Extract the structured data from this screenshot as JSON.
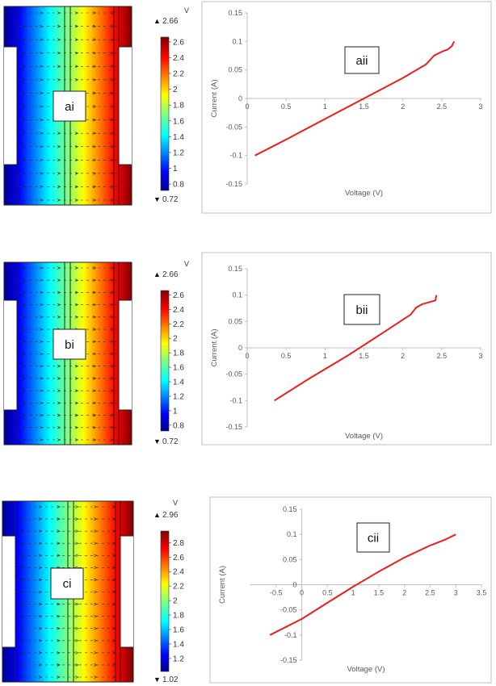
{
  "rows": [
    {
      "label": "ai",
      "unit": "V",
      "max_label": "2.66",
      "min_label": "0.72",
      "colorbar_ticks": [
        "2.6",
        "2.4",
        "2.2",
        "2",
        "1.8",
        "1.6",
        "1.4",
        "1.2",
        "1",
        "0.8"
      ],
      "colorbar_values": [
        2.6,
        2.4,
        2.2,
        2.0,
        1.8,
        1.6,
        1.4,
        1.2,
        1.0,
        0.8
      ],
      "range": [
        0.72,
        2.66
      ]
    },
    {
      "label": "bi",
      "unit": "V",
      "max_label": "2.66",
      "min_label": "0.72",
      "colorbar_ticks": [
        "2.6",
        "2.4",
        "2.2",
        "2",
        "1.8",
        "1.6",
        "1.4",
        "1.2",
        "1",
        "0.8"
      ],
      "colorbar_values": [
        2.6,
        2.4,
        2.2,
        2.0,
        1.8,
        1.6,
        1.4,
        1.2,
        1.0,
        0.8
      ],
      "range": [
        0.72,
        2.66
      ]
    },
    {
      "label": "ci",
      "unit": "V",
      "max_label": "2.96",
      "min_label": "1.02",
      "colorbar_ticks": [
        "2.8",
        "2.6",
        "2.4",
        "2.2",
        "2",
        "1.8",
        "1.6",
        "1.4",
        "1.2"
      ],
      "colorbar_values": [
        2.8,
        2.6,
        2.4,
        2.2,
        2.0,
        1.8,
        1.6,
        1.4,
        1.2
      ],
      "range": [
        1.02,
        2.96
      ]
    }
  ],
  "chart_data": [
    {
      "type": "line",
      "label": "aii",
      "xlabel": "Voltage (V)",
      "ylabel": "Current (A)",
      "xlim": [
        0,
        3
      ],
      "ylim": [
        -0.15,
        0.15
      ],
      "xticks": [
        "0",
        "0.5",
        "1",
        "1.5",
        "2",
        "2.5",
        "3"
      ],
      "xtick_values": [
        0,
        0.5,
        1,
        1.5,
        2,
        2.5,
        3
      ],
      "yticks": [
        "0.15",
        "0.1",
        "0.05",
        "0",
        "-0.05",
        "-0.1",
        "-0.15"
      ],
      "ytick_values": [
        0.15,
        0.1,
        0.05,
        0,
        -0.05,
        -0.1,
        -0.15
      ],
      "grid": false,
      "color": "#e8201c",
      "x": [
        0.1,
        0.5,
        1.0,
        1.5,
        2.0,
        2.3,
        2.4,
        2.5,
        2.58,
        2.63,
        2.66
      ],
      "y": [
        -0.1,
        -0.072,
        -0.036,
        0.0,
        0.036,
        0.06,
        0.075,
        0.082,
        0.086,
        0.092,
        0.1
      ]
    },
    {
      "type": "line",
      "label": "bii",
      "xlabel": "Voltage (V)",
      "ylabel": "Current (A)",
      "xlim": [
        0,
        3
      ],
      "ylim": [
        -0.15,
        0.15
      ],
      "xticks": [
        "0",
        "0.5",
        "1",
        "1.5",
        "2",
        "2.5",
        "3"
      ],
      "xtick_values": [
        0,
        0.5,
        1,
        1.5,
        2,
        2.5,
        3
      ],
      "yticks": [
        "0.15",
        "0.1",
        "0.05",
        "0",
        "-0.05",
        "-0.1",
        "-0.15"
      ],
      "ytick_values": [
        0.15,
        0.1,
        0.05,
        0,
        -0.05,
        -0.1,
        -0.15
      ],
      "grid": false,
      "color": "#e8201c",
      "x": [
        0.35,
        0.8,
        1.3,
        1.8,
        2.1,
        2.17,
        2.25,
        2.35,
        2.42,
        2.43
      ],
      "y": [
        -0.1,
        -0.058,
        -0.014,
        0.034,
        0.063,
        0.076,
        0.083,
        0.087,
        0.09,
        0.1
      ]
    },
    {
      "type": "line",
      "label": "cii",
      "xlabel": "Voltage (V)",
      "ylabel": "Current (A)",
      "xlim": [
        -1,
        3.5
      ],
      "ylim": [
        -0.15,
        0.15
      ],
      "xticks": [
        "-0.5",
        "0",
        "0.5",
        "1",
        "1.5",
        "2",
        "2.5",
        "3",
        "3.5"
      ],
      "xtick_values": [
        -0.5,
        0,
        0.5,
        1,
        1.5,
        2,
        2.5,
        3,
        3.5
      ],
      "yticks": [
        "0.15",
        "0.1",
        "0.05",
        "0",
        "-0.05",
        "-0.1",
        "-0.15"
      ],
      "ytick_values": [
        0.15,
        0.1,
        0.05,
        0,
        -0.05,
        -0.1,
        -0.15
      ],
      "grid": false,
      "color": "#e8201c",
      "x": [
        -0.62,
        0.0,
        0.5,
        1.0,
        1.5,
        2.0,
        2.5,
        2.8,
        3.0
      ],
      "y": [
        -0.1,
        -0.068,
        -0.036,
        -0.004,
        0.026,
        0.054,
        0.078,
        0.09,
        0.1
      ]
    }
  ]
}
